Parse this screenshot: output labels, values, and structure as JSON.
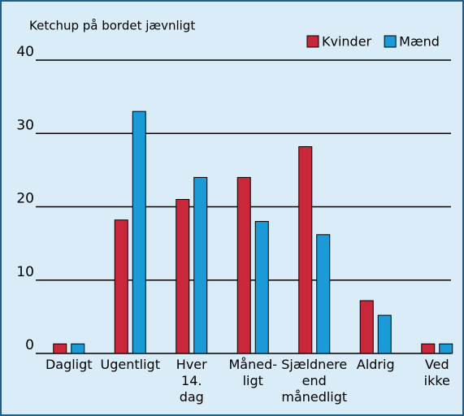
{
  "chart_data": {
    "type": "bar",
    "title": "Ketchup på bordet jævnligt",
    "categories": [
      "Dagligt",
      "Ugentligt",
      "Hver\n14.\ndag",
      "Måned-\nligt",
      "Sjældnere\nend\nmånedligt",
      "Aldrig",
      "Ved\nikke"
    ],
    "series": [
      {
        "name": "Kvinder",
        "color": "#c8283a",
        "values": [
          1.3,
          18.2,
          21,
          24,
          28.2,
          7.2,
          1.3
        ]
      },
      {
        "name": "Mænd",
        "color": "#1a9ad6",
        "values": [
          1.3,
          33,
          24,
          18,
          16.2,
          5.2,
          1.3
        ]
      }
    ],
    "ylim": [
      0,
      40
    ],
    "yticks": [
      0,
      10,
      20,
      30,
      40
    ],
    "grid": true,
    "legend": "top-right"
  }
}
